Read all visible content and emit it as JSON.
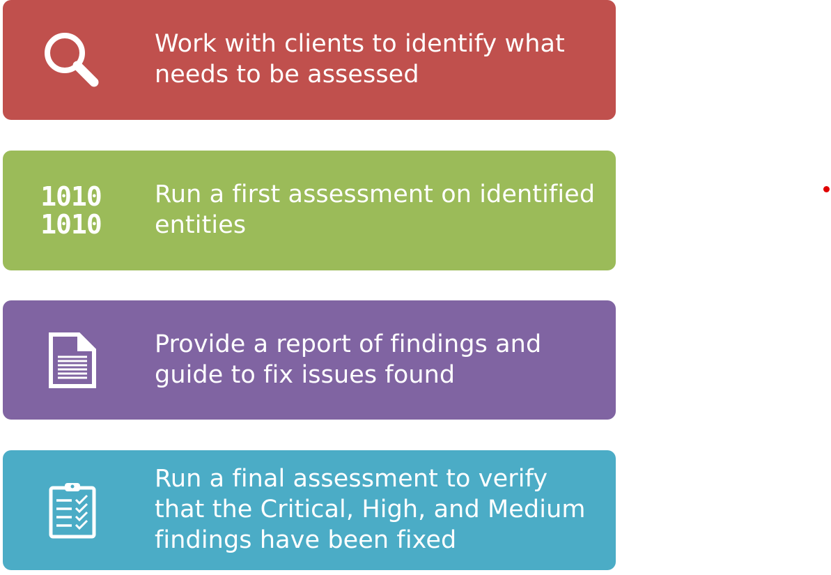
{
  "colors": {
    "step_1": "#c0504d",
    "step_2": "#9bbb59",
    "step_3": "#8064a2",
    "step_4": "#4bacc6",
    "marker": "#e00000"
  },
  "steps": [
    {
      "icon": "magnifier-icon",
      "text": "Work with clients to identify what needs to be assessed"
    },
    {
      "icon": "binary-code-icon",
      "icon_text": "1010 1010",
      "text": "Run a first assessment on identified entities"
    },
    {
      "icon": "document-icon",
      "text": "Provide a report of findings and guide to fix issues found"
    },
    {
      "icon": "clipboard-checklist-icon",
      "text": "Run a final assessment to verify that the Critical, High, and Medium findings have been fixed"
    }
  ]
}
